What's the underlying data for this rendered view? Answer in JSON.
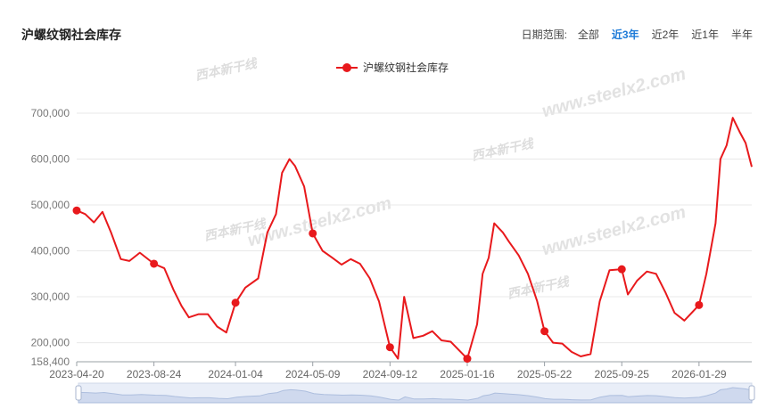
{
  "header": {
    "title": "沪螺纹钢社会库存",
    "range_label": "日期范围:",
    "range_options": [
      "全部",
      "近3年",
      "近2年",
      "近1年",
      "半年"
    ],
    "active_option": "近3年"
  },
  "colors": {
    "series": "#e8191c",
    "grid": "#e8e8e8",
    "active": "#1e7bd8"
  },
  "chart_data": {
    "type": "line",
    "title": "沪螺纹钢社会库存",
    "legend": {
      "position": "top-center",
      "entries": [
        "沪螺纹钢社会库存"
      ]
    },
    "series": [
      {
        "name": "沪螺纹钢社会库存",
        "x": [
          "2023-04-20",
          "2023-05-04",
          "2023-05-18",
          "2023-06-01",
          "2023-06-15",
          "2023-07-01",
          "2023-07-15",
          "2023-08-01",
          "2023-08-24",
          "2023-09-10",
          "2023-09-25",
          "2023-10-08",
          "2023-10-20",
          "2023-11-05",
          "2023-11-20",
          "2023-12-05",
          "2023-12-20",
          "2024-01-04",
          "2024-01-20",
          "2024-02-10",
          "2024-02-25",
          "2024-03-10",
          "2024-03-20",
          "2024-04-01",
          "2024-04-10",
          "2024-04-25",
          "2024-05-09",
          "2024-05-25",
          "2024-06-10",
          "2024-06-25",
          "2024-07-10",
          "2024-07-25",
          "2024-08-10",
          "2024-08-25",
          "2024-09-12",
          "2024-09-20",
          "2024-09-25",
          "2024-10-05",
          "2024-10-20",
          "2024-11-05",
          "2024-11-20",
          "2024-12-05",
          "2024-12-20",
          "2025-01-16",
          "2025-02-01",
          "2025-02-10",
          "2025-02-20",
          "2025-03-01",
          "2025-03-15",
          "2025-03-25",
          "2025-04-10",
          "2025-04-25",
          "2025-05-10",
          "2025-05-22",
          "2025-06-05",
          "2025-06-20",
          "2025-07-05",
          "2025-07-20",
          "2025-08-05",
          "2025-08-20",
          "2025-09-05",
          "2025-09-25",
          "2025-10-05",
          "2025-10-20",
          "2025-11-05",
          "2025-11-20",
          "2025-12-05",
          "2025-12-20",
          "2026-01-05",
          "2026-01-29",
          "2026-02-10",
          "2026-02-25",
          "2026-03-05",
          "2026-03-15",
          "2026-03-25",
          "2026-04-05",
          "2026-04-15",
          "2026-04-25"
        ],
        "values": [
          488000,
          480000,
          462000,
          485000,
          440000,
          382000,
          378000,
          396000,
          372000,
          362000,
          315000,
          280000,
          255000,
          262000,
          262000,
          235000,
          222000,
          287000,
          320000,
          340000,
          440000,
          480000,
          570000,
          600000,
          585000,
          540000,
          438000,
          400000,
          385000,
          370000,
          382000,
          372000,
          340000,
          290000,
          190000,
          175000,
          165000,
          300000,
          210000,
          215000,
          225000,
          205000,
          202000,
          165000,
          240000,
          350000,
          385000,
          460000,
          440000,
          420000,
          390000,
          350000,
          290000,
          225000,
          200000,
          198000,
          180000,
          170000,
          175000,
          290000,
          358000,
          360000,
          305000,
          335000,
          355000,
          350000,
          310000,
          265000,
          248000,
          282000,
          350000,
          460000,
          600000,
          630000,
          690000,
          660000,
          635000,
          583000
        ]
      }
    ],
    "marked_points": [
      "2023-04-20",
      "2023-08-24",
      "2024-01-04",
      "2024-05-09",
      "2024-09-12",
      "2025-01-16",
      "2025-05-22",
      "2025-09-25",
      "2026-01-29"
    ],
    "x_tick_labels": [
      "2023-04-20",
      "2023-08-24",
      "2024-01-04",
      "2024-05-09",
      "2024-09-12",
      "2025-01-16",
      "2025-05-22",
      "2025-09-25",
      "2026-01-29"
    ],
    "y_tick_labels": [
      "158,400",
      "200,000",
      "300,000",
      "400,000",
      "500,000",
      "600,000",
      "700,000"
    ],
    "y_ticks": [
      158400,
      200000,
      300000,
      400000,
      500000,
      600000,
      700000
    ],
    "ylim": [
      158400,
      720000
    ],
    "grid": true,
    "watermark": "www.steelx2.com",
    "watermark_brand": "西本新干线"
  }
}
